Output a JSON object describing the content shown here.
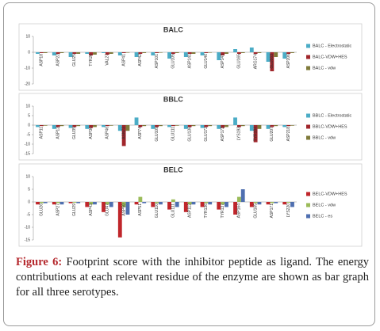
{
  "chart_data": [
    {
      "type": "bar",
      "title": "BALC",
      "categories": [
        "ASP18",
        "ASP22",
        "GLU25",
        "TYR26",
        "VAL27",
        "ASP41",
        "ASP42",
        "ASP101",
        "GLU105",
        "ASP141",
        "GLU146",
        "ASP147",
        "GLU165",
        "ARG174",
        "GLU203",
        "ASP206"
      ],
      "series": [
        {
          "name": "BALC - Electrostatic",
          "color": "#4bacc6",
          "values": [
            -1,
            -2,
            -3,
            -1,
            -0.5,
            -2,
            -3,
            -2,
            -4,
            -3,
            -2,
            -5,
            2,
            3,
            -6,
            -4
          ]
        },
        {
          "name": "BALC-VDW+HES",
          "color": "#a0262b",
          "values": [
            -0.5,
            -1,
            -1,
            -2,
            -1.5,
            -0.5,
            -1,
            -0.5,
            -1,
            -1,
            -0.5,
            -2,
            -1,
            -1,
            -12,
            -1
          ]
        },
        {
          "name": "BALC - vdw",
          "color": "#7f7a3a",
          "values": [
            -0.5,
            -0.5,
            -1,
            -1.5,
            -1,
            -0.3,
            -0.5,
            -0.3,
            -0.5,
            -1,
            -0.3,
            -1,
            -0.5,
            -0.5,
            -3,
            -0.5
          ]
        }
      ],
      "ylim": [
        -20,
        10
      ],
      "yticks": [
        10,
        0,
        -10,
        -20
      ],
      "legend": "right"
    },
    {
      "type": "bar",
      "title": "BBLC",
      "categories": [
        "ASP11",
        "ASP12",
        "GLU35",
        "ASP36",
        "ASP46",
        "ASN73",
        "ASP74",
        "GLU109",
        "GLU111",
        "GLU136",
        "GLU172",
        "ASP173",
        "LYS193",
        "TYR194",
        "GLU207",
        "ASP218"
      ],
      "series": [
        {
          "name": "BBLC - Electrostatic",
          "color": "#4bacc6",
          "values": [
            -1,
            -2,
            -1.5,
            -2,
            -1,
            -3,
            4,
            -2,
            -1,
            -2,
            -1.5,
            -2,
            4,
            -3,
            -2,
            -1
          ]
        },
        {
          "name": "BBLC-VDW+HES",
          "color": "#a0262b",
          "values": [
            -0.5,
            -1,
            -1,
            -1.5,
            -0.5,
            -11,
            -1,
            -1,
            -0.5,
            -1,
            -1,
            -1.5,
            -1,
            -9,
            -1,
            -0.5
          ]
        },
        {
          "name": "BBLC - vdw",
          "color": "#7f7a3a",
          "values": [
            -0.3,
            -0.5,
            -0.5,
            -1,
            -0.3,
            -3,
            -0.5,
            -0.5,
            -0.3,
            -0.5,
            -0.5,
            -1,
            -0.5,
            -2,
            -0.5,
            -0.3
          ]
        }
      ],
      "ylim": [
        -15,
        10
      ],
      "yticks": [
        10,
        5,
        0,
        -5,
        -10,
        -15
      ],
      "legend": "right"
    },
    {
      "type": "bar",
      "title": "BELC",
      "categories": [
        "GLU26",
        "ASP27",
        "GLU29",
        "ASP43",
        "GLU47",
        "ASP50",
        "ASP51",
        "GLU110",
        "GLU111",
        "ASP112",
        "TYR136",
        "TYR137",
        "ASP164",
        "GLU165",
        "ASP171",
        "LYS220"
      ],
      "series": [
        {
          "name": "BELC-VDW+HES",
          "color": "#c0262b",
          "values": [
            -1,
            -1,
            -0.5,
            -2,
            -4,
            -14,
            -1,
            -2,
            -3,
            -4,
            -2,
            -3,
            -5,
            -2,
            -1,
            -1
          ]
        },
        {
          "name": "BELC - vdw",
          "color": "#9bbb59",
          "values": [
            -0.5,
            -0.5,
            -0.3,
            -1,
            -1,
            -2,
            2,
            -0.5,
            1,
            -1,
            -0.5,
            -1,
            2,
            -0.5,
            -0.5,
            -0.3
          ]
        },
        {
          "name": "BELC - es",
          "color": "#4f6fb0",
          "values": [
            -0.5,
            -1,
            -0.5,
            -1,
            -2,
            -5,
            -0.5,
            -1,
            -2,
            -1,
            -1,
            -2,
            5,
            -1,
            -0.5,
            -2
          ]
        }
      ],
      "ylim": [
        -15,
        10
      ],
      "yticks": [
        10,
        5,
        0,
        -5,
        -10,
        -15
      ],
      "legend": "right"
    }
  ],
  "caption": {
    "label": "Figure 6:",
    "text": "Footprint score with the inhibitor peptide as ligand. The energy contributions at each relevant residue of the enzyme are shown as bar graph for all three serotypes."
  }
}
